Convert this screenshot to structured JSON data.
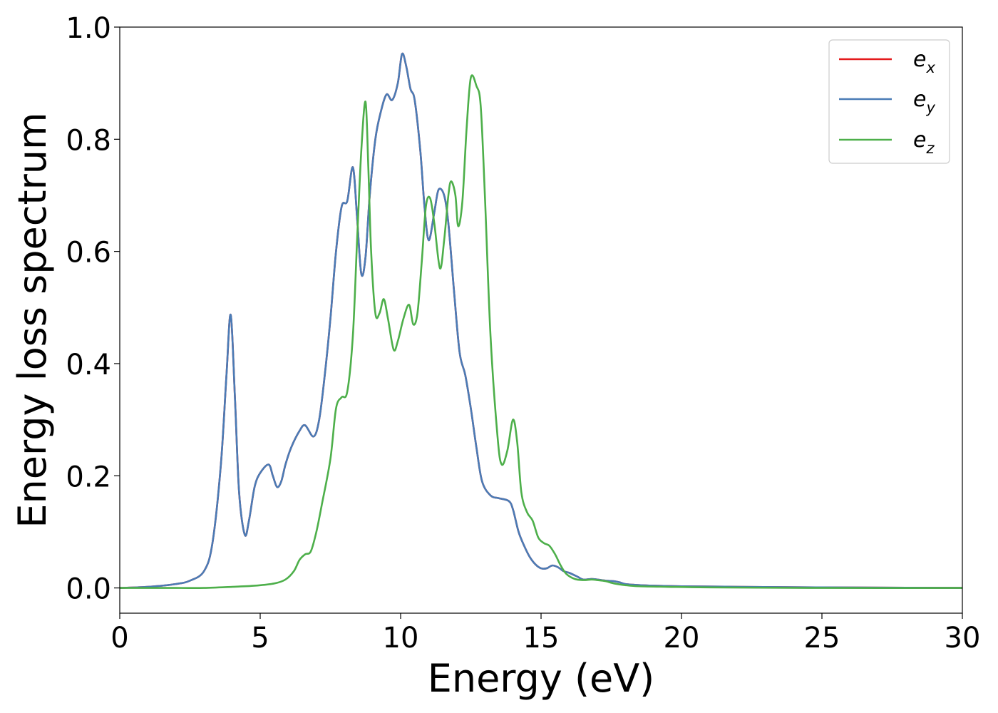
{
  "chart_data": {
    "type": "line",
    "title": "",
    "xlabel": "Energy (eV)",
    "ylabel": "Energy loss spectrum",
    "xlim": [
      0,
      30
    ],
    "ylim": [
      -0.045,
      1.0
    ],
    "xticks": [
      0,
      5,
      10,
      15,
      20,
      25,
      30
    ],
    "xtick_labels": [
      "0",
      "5",
      "10",
      "15",
      "20",
      "25",
      "30"
    ],
    "yticks": [
      0.0,
      0.2,
      0.4,
      0.6,
      0.8,
      1.0
    ],
    "ytick_labels": [
      "0.0",
      "0.2",
      "0.4",
      "0.6",
      "0.8",
      "1.0"
    ],
    "grid": false,
    "legend_position": "top-right",
    "series": [
      {
        "name": "e_x",
        "legend_base": "e",
        "legend_sub": "x",
        "color": "#e41a1c",
        "x": [
          0,
          1,
          2,
          2.5,
          3.0,
          3.3,
          3.6,
          3.8,
          3.95,
          4.1,
          4.25,
          4.45,
          4.6,
          4.8,
          5.0,
          5.3,
          5.45,
          5.6,
          5.75,
          5.9,
          6.1,
          6.4,
          6.6,
          6.9,
          7.1,
          7.3,
          7.5,
          7.7,
          7.9,
          8.1,
          8.3,
          8.45,
          8.6,
          8.75,
          8.9,
          9.1,
          9.3,
          9.5,
          9.7,
          9.9,
          10.05,
          10.2,
          10.35,
          10.5,
          10.7,
          10.85,
          11.0,
          11.2,
          11.35,
          11.55,
          11.7,
          11.9,
          12.1,
          12.3,
          12.5,
          12.7,
          12.9,
          13.2,
          13.5,
          13.85,
          14.0,
          14.2,
          14.4,
          14.6,
          14.8,
          15.0,
          15.2,
          15.4,
          15.6,
          15.8,
          16.0,
          16.3,
          16.5,
          16.8,
          17.0,
          17.3,
          17.6,
          17.8,
          18.0,
          18.5,
          19.0,
          20.0,
          22.0,
          25.0,
          30.0
        ],
        "y": [
          0.0,
          0.002,
          0.007,
          0.013,
          0.03,
          0.08,
          0.22,
          0.38,
          0.487,
          0.34,
          0.17,
          0.095,
          0.12,
          0.18,
          0.205,
          0.22,
          0.2,
          0.18,
          0.19,
          0.22,
          0.25,
          0.28,
          0.29,
          0.27,
          0.3,
          0.38,
          0.48,
          0.6,
          0.68,
          0.69,
          0.75,
          0.66,
          0.56,
          0.59,
          0.7,
          0.8,
          0.85,
          0.88,
          0.87,
          0.9,
          0.952,
          0.93,
          0.89,
          0.87,
          0.78,
          0.68,
          0.62,
          0.67,
          0.71,
          0.7,
          0.65,
          0.53,
          0.42,
          0.38,
          0.32,
          0.25,
          0.19,
          0.165,
          0.16,
          0.155,
          0.14,
          0.1,
          0.075,
          0.055,
          0.042,
          0.035,
          0.035,
          0.04,
          0.037,
          0.03,
          0.027,
          0.02,
          0.015,
          0.016,
          0.015,
          0.013,
          0.012,
          0.01,
          0.007,
          0.005,
          0.004,
          0.003,
          0.002,
          0.001,
          0.0
        ]
      },
      {
        "name": "e_y",
        "legend_base": "e",
        "legend_sub": "y",
        "color": "#4a7cb6",
        "x": [
          0,
          1,
          2,
          2.5,
          3.0,
          3.3,
          3.6,
          3.8,
          3.95,
          4.1,
          4.25,
          4.45,
          4.6,
          4.8,
          5.0,
          5.3,
          5.45,
          5.6,
          5.75,
          5.9,
          6.1,
          6.4,
          6.6,
          6.9,
          7.1,
          7.3,
          7.5,
          7.7,
          7.9,
          8.1,
          8.3,
          8.45,
          8.6,
          8.75,
          8.9,
          9.1,
          9.3,
          9.5,
          9.7,
          9.9,
          10.05,
          10.2,
          10.35,
          10.5,
          10.7,
          10.85,
          11.0,
          11.2,
          11.35,
          11.55,
          11.7,
          11.9,
          12.1,
          12.3,
          12.5,
          12.7,
          12.9,
          13.2,
          13.5,
          13.85,
          14.0,
          14.2,
          14.4,
          14.6,
          14.8,
          15.0,
          15.2,
          15.4,
          15.6,
          15.8,
          16.0,
          16.3,
          16.5,
          16.8,
          17.0,
          17.3,
          17.6,
          17.8,
          18.0,
          18.5,
          19.0,
          20.0,
          22.0,
          25.0,
          30.0
        ],
        "y": [
          0.0,
          0.002,
          0.007,
          0.013,
          0.03,
          0.08,
          0.22,
          0.38,
          0.487,
          0.34,
          0.17,
          0.095,
          0.12,
          0.18,
          0.205,
          0.22,
          0.2,
          0.18,
          0.19,
          0.22,
          0.25,
          0.28,
          0.29,
          0.27,
          0.3,
          0.38,
          0.48,
          0.6,
          0.68,
          0.69,
          0.75,
          0.66,
          0.56,
          0.59,
          0.7,
          0.8,
          0.85,
          0.88,
          0.87,
          0.9,
          0.952,
          0.93,
          0.89,
          0.87,
          0.78,
          0.68,
          0.62,
          0.67,
          0.71,
          0.7,
          0.65,
          0.53,
          0.42,
          0.38,
          0.32,
          0.25,
          0.19,
          0.165,
          0.16,
          0.155,
          0.14,
          0.1,
          0.075,
          0.055,
          0.042,
          0.035,
          0.035,
          0.04,
          0.037,
          0.03,
          0.027,
          0.02,
          0.015,
          0.016,
          0.015,
          0.013,
          0.012,
          0.01,
          0.007,
          0.005,
          0.004,
          0.003,
          0.002,
          0.001,
          0.0
        ]
      },
      {
        "name": "e_z",
        "legend_base": "e",
        "legend_sub": "z",
        "color": "#4daf4a",
        "x": [
          0,
          2,
          3,
          4,
          4.8,
          5.5,
          5.9,
          6.2,
          6.4,
          6.6,
          6.8,
          7.0,
          7.2,
          7.5,
          7.7,
          7.9,
          8.1,
          8.3,
          8.45,
          8.6,
          8.75,
          8.85,
          8.95,
          9.1,
          9.25,
          9.4,
          9.55,
          9.75,
          9.9,
          10.1,
          10.3,
          10.45,
          10.6,
          10.75,
          10.9,
          11.05,
          11.2,
          11.4,
          11.55,
          11.7,
          11.8,
          11.95,
          12.05,
          12.2,
          12.35,
          12.5,
          12.7,
          12.85,
          13.0,
          13.2,
          13.45,
          13.6,
          13.8,
          14.0,
          14.15,
          14.3,
          14.5,
          14.7,
          14.9,
          15.1,
          15.3,
          15.5,
          15.7,
          15.9,
          16.2,
          16.5,
          16.8,
          17.0,
          17.3,
          17.6,
          18.0,
          18.5,
          19.5,
          21.0,
          25.0,
          30.0
        ],
        "y": [
          0.0,
          0.0,
          0.0,
          0.002,
          0.004,
          0.008,
          0.015,
          0.03,
          0.05,
          0.06,
          0.065,
          0.1,
          0.15,
          0.23,
          0.32,
          0.34,
          0.35,
          0.45,
          0.62,
          0.78,
          0.867,
          0.75,
          0.6,
          0.49,
          0.49,
          0.515,
          0.48,
          0.425,
          0.44,
          0.48,
          0.505,
          0.47,
          0.49,
          0.58,
          0.68,
          0.695,
          0.65,
          0.57,
          0.62,
          0.7,
          0.725,
          0.7,
          0.645,
          0.69,
          0.82,
          0.91,
          0.895,
          0.86,
          0.7,
          0.45,
          0.27,
          0.22,
          0.245,
          0.3,
          0.26,
          0.17,
          0.135,
          0.12,
          0.09,
          0.08,
          0.075,
          0.06,
          0.04,
          0.025,
          0.016,
          0.014,
          0.015,
          0.014,
          0.012,
          0.008,
          0.005,
          0.003,
          0.002,
          0.001,
          0.0,
          0.0
        ]
      }
    ]
  }
}
